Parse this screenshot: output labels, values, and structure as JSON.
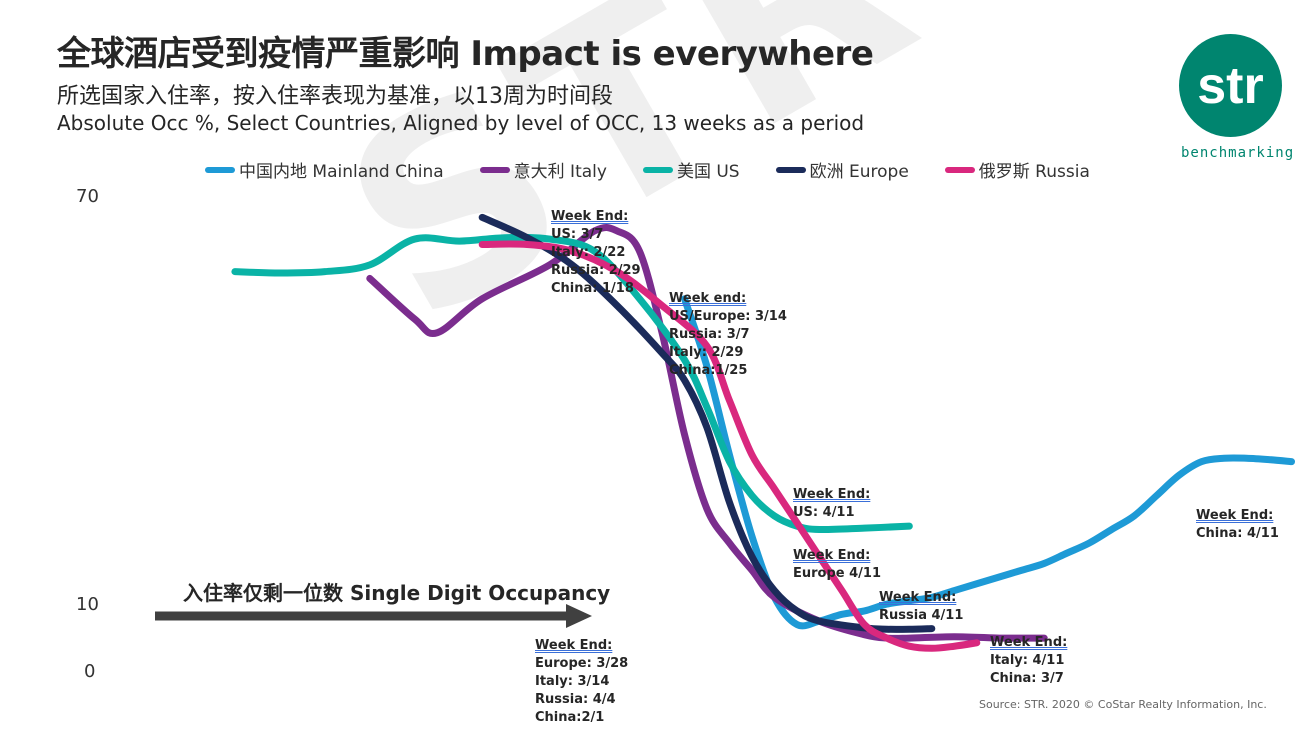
{
  "watermark": "STR STR",
  "header": {
    "title": "全球酒店受到疫情严重影响 Impact is everywhere",
    "subtitle_zh": "所选国家入住率，按入住率表现为基准，以13周为时间段",
    "subtitle_en": "Absolute Occ %, Select Countries, Aligned by level of OCC, 13 weeks as a period"
  },
  "logo": {
    "text": "str",
    "sub": "benchmarking",
    "color": "#00856f"
  },
  "arrow": {
    "label": "入住率仅剩一位数 Single Digit Occupancy",
    "color": "#404040"
  },
  "source": "Source: STR. 2020 © CoStar Realty Information, Inc.",
  "annotations": [
    {
      "id": "a1",
      "lines": [
        "Week End:",
        "US: 3/7",
        "Italy: 2/22",
        "Russia: 2/29",
        "China: 1/18"
      ]
    },
    {
      "id": "a2",
      "lines": [
        "Week end:",
        "US/Europe: 3/14",
        "Russia: 3/7",
        "Italy: 2/29",
        "China:1/25"
      ]
    },
    {
      "id": "a3",
      "lines": [
        "Week End:",
        "US: 4/11"
      ]
    },
    {
      "id": "a4",
      "lines": [
        "Week End:",
        "Europe 4/11"
      ]
    },
    {
      "id": "a5",
      "lines": [
        "Week End:",
        "Russia 4/11"
      ]
    },
    {
      "id": "a6",
      "lines": [
        "Week End:",
        "Italy: 4/11",
        "China: 3/7"
      ]
    },
    {
      "id": "a7",
      "lines": [
        "Week End:",
        "China: 4/11"
      ]
    },
    {
      "id": "a8",
      "lines": [
        "Week End:",
        "Europe: 3/28",
        "Italy: 3/14",
        "Russia: 4/4",
        "China:2/1"
      ]
    }
  ],
  "chart_data": {
    "type": "line",
    "title": "全球酒店受到疫情严重影响 Impact is everywhere",
    "ylabel": "",
    "xlabel": "",
    "ylim": [
      0,
      70
    ],
    "xlim": [
      0,
      27
    ],
    "yticks": [
      "0",
      "10",
      "70"
    ],
    "legend_position": "top",
    "grid": false,
    "series": [
      {
        "name": "中国内地 Mainland China",
        "color": "#1e9ad6",
        "x": [
          13,
          13.5,
          14,
          14.5,
          15,
          15.5,
          16,
          16.5,
          17,
          17.5,
          18,
          18.5,
          19,
          19.5,
          20,
          20.5,
          21,
          21.5,
          22,
          22.5,
          23,
          23.5,
          24,
          24.5,
          25,
          25.5,
          26,
          26.5
        ],
        "y": [
          55,
          45,
          32,
          20,
          11,
          7,
          7.5,
          8.5,
          9,
          10,
          10.5,
          11,
          12,
          13,
          14,
          15,
          16,
          17.5,
          19,
          21,
          23,
          26,
          29,
          31,
          31.5,
          31.5,
          31.3,
          31
        ]
      },
      {
        "name": "意大利 Italy",
        "color": "#7b2d8e",
        "x": [
          6,
          7,
          7.5,
          8.5,
          10,
          11,
          11.5,
          12,
          12.5,
          13,
          13.5,
          14,
          14.5,
          15,
          16,
          17,
          17.5,
          18,
          19,
          20,
          20.5,
          21
        ],
        "y": [
          58,
          52,
          50,
          55,
          60,
          65,
          65,
          62,
          50,
          35,
          24,
          19,
          15,
          11,
          7.5,
          5.5,
          5,
          5,
          5.2,
          5,
          5,
          5
        ]
      },
      {
        "name": "美国 US",
        "color": "#0ab3a6",
        "x": [
          3,
          4,
          5,
          6,
          7,
          8,
          9,
          10,
          11,
          12,
          13,
          13.5,
          14,
          14.5,
          15,
          15.5,
          16,
          17,
          18
        ],
        "y": [
          59,
          58.8,
          59,
          60,
          63.8,
          63.5,
          64,
          63.8,
          62,
          55,
          46,
          39,
          31,
          26,
          23,
          21.5,
          21,
          21.2,
          21.5
        ]
      },
      {
        "name": "欧洲 Europe",
        "color": "#1b2b5a",
        "x": [
          8.5,
          9.5,
          10.5,
          11.5,
          12.5,
          13,
          13.5,
          14,
          14.5,
          15,
          15.5,
          16,
          17,
          17.5,
          18,
          18.5
        ],
        "y": [
          67,
          64,
          60,
          54,
          47,
          43,
          36,
          25,
          17,
          12,
          9,
          7.5,
          6.5,
          6.3,
          6.3,
          6.4
        ]
      },
      {
        "name": "俄罗斯 Russia",
        "color": "#d9287e",
        "x": [
          8.5,
          9.5,
          10.5,
          11.5,
          12.5,
          13.5,
          14,
          14.5,
          15,
          15.5,
          16,
          16.5,
          17,
          17.5,
          18,
          18.5,
          19,
          19.5
        ],
        "y": [
          63,
          63,
          62,
          59,
          54,
          48,
          40,
          32,
          27,
          22,
          17,
          12,
          7,
          5,
          3.8,
          3.5,
          3.8,
          4.3
        ]
      }
    ]
  }
}
